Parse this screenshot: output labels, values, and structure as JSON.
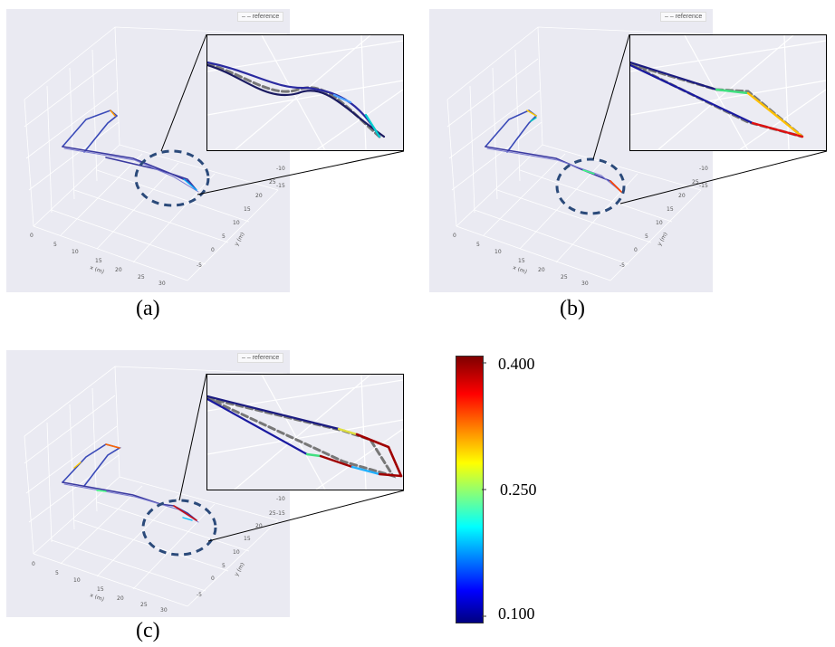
{
  "figure": {
    "captions": {
      "a": "(a)",
      "b": "(b)",
      "c": "(c)"
    },
    "legend_label": "reference",
    "x_axis_label": "x (m)",
    "y_axis_label": "y (m)",
    "x_ticks": [
      "0",
      "5",
      "10",
      "15",
      "20",
      "25",
      "30"
    ],
    "y_ticks": [
      "-5",
      "0",
      "5",
      "10",
      "15",
      "20",
      "25"
    ],
    "z_ticks": [
      "-10",
      "-15"
    ]
  },
  "chart_data": {
    "type": "colorbar",
    "title": "",
    "colormap": "jet",
    "min": 0.1,
    "max": 0.4,
    "tick_labels": [
      "0.400",
      "0.250",
      "0.100"
    ],
    "tick_values": [
      0.4,
      0.25,
      0.1
    ],
    "colors": {
      "reference": "#6e6e6e",
      "highlight_ellipse": "#2b4a7a"
    }
  }
}
